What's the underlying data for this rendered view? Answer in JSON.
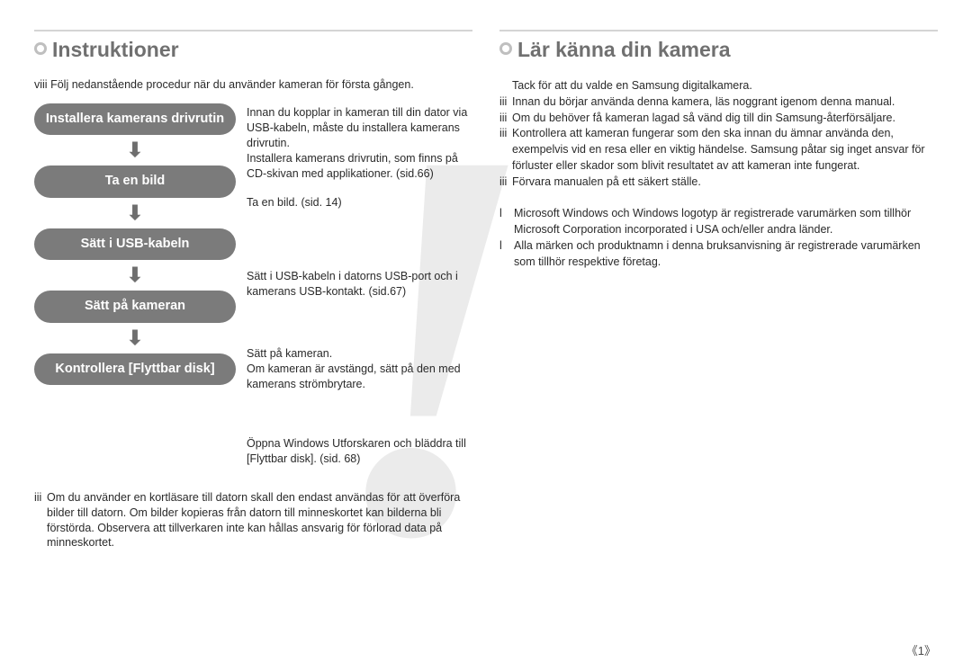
{
  "watermark_char": "!",
  "left": {
    "heading": "Instruktioner",
    "intro_bullet": "viii",
    "intro": "Följ nedanstående procedur när du använder kameran för första gången.",
    "steps": [
      {
        "label": "Installera kamerans drivrutin",
        "desc": "Innan du kopplar in kameran till din dator via USB-kabeln, måste du installera kamerans drivrutin.\nInstallera kamerans drivrutin, som finns på CD-skivan med applikationer. (sid.66)"
      },
      {
        "label": "Ta en bild",
        "desc": "Ta en bild. (sid. 14)"
      },
      {
        "label": "Sätt i USB-kabeln",
        "desc": "Sätt i USB-kabeln i datorns USB-port och i kamerans USB-kontakt. (sid.67)"
      },
      {
        "label": "Sätt på kameran",
        "desc": "Sätt på kameran.\nOm kameran är avstängd, sätt på den med kamerans strömbrytare."
      },
      {
        "label": "Kontrollera [Flyttbar disk]",
        "desc": "Öppna Windows Utforskaren och bläddra till [Flyttbar disk]. (sid. 68)"
      }
    ],
    "note_bullet": "iii",
    "note": "Om du använder en kortläsare till datorn skall den endast användas för att överföra bilder till datorn. Om bilder kopieras från datorn till minneskortet kan bilderna bli förstörda. Observera att tillverkaren inte kan hållas ansvarig för förlorad data på minneskortet."
  },
  "right": {
    "heading": "Lär känna din kamera",
    "lines": [
      {
        "b": "",
        "t": "Tack för att du valde en Samsung digitalkamera."
      },
      {
        "b": "iii",
        "t": "Innan du börjar använda denna kamera, läs noggrant igenom denna manual."
      },
      {
        "b": "iii",
        "t": "Om du behöver få kameran lagad så vänd dig till din Samsung-återförsäljare."
      },
      {
        "b": "iii",
        "t": "Kontrollera att kameran fungerar som den ska innan du ämnar använda den, exempelvis vid en resa eller en viktig händelse. Samsung påtar sig inget ansvar för förluster eller skador som blivit resultatet av att kameran inte fungerat."
      },
      {
        "b": "iii",
        "t": "Förvara manualen på ett säkert ställe."
      }
    ],
    "trademarks": [
      {
        "b": "l",
        "t": "Microsoft Windows och Windows logotyp är registrerade varumärken som tillhör Microsoft Corporation incorporated i USA och/eller andra länder."
      },
      {
        "b": "l",
        "t": "Alla märken och produktnamn i denna bruksanvisning är registrerade varumärken som tillhör respektive företag."
      }
    ]
  },
  "page_number": "《1》",
  "colors": {
    "heading_text": "#707070",
    "pill_bg": "#7b7b7b",
    "pill_text": "#ffffff",
    "body_text": "#2a2a2a",
    "rule": "#d4d4d4",
    "dot_outer": "#bfbfbf",
    "arrow": "#6e6e6e",
    "watermark": "rgba(120,120,120,0.15)"
  }
}
